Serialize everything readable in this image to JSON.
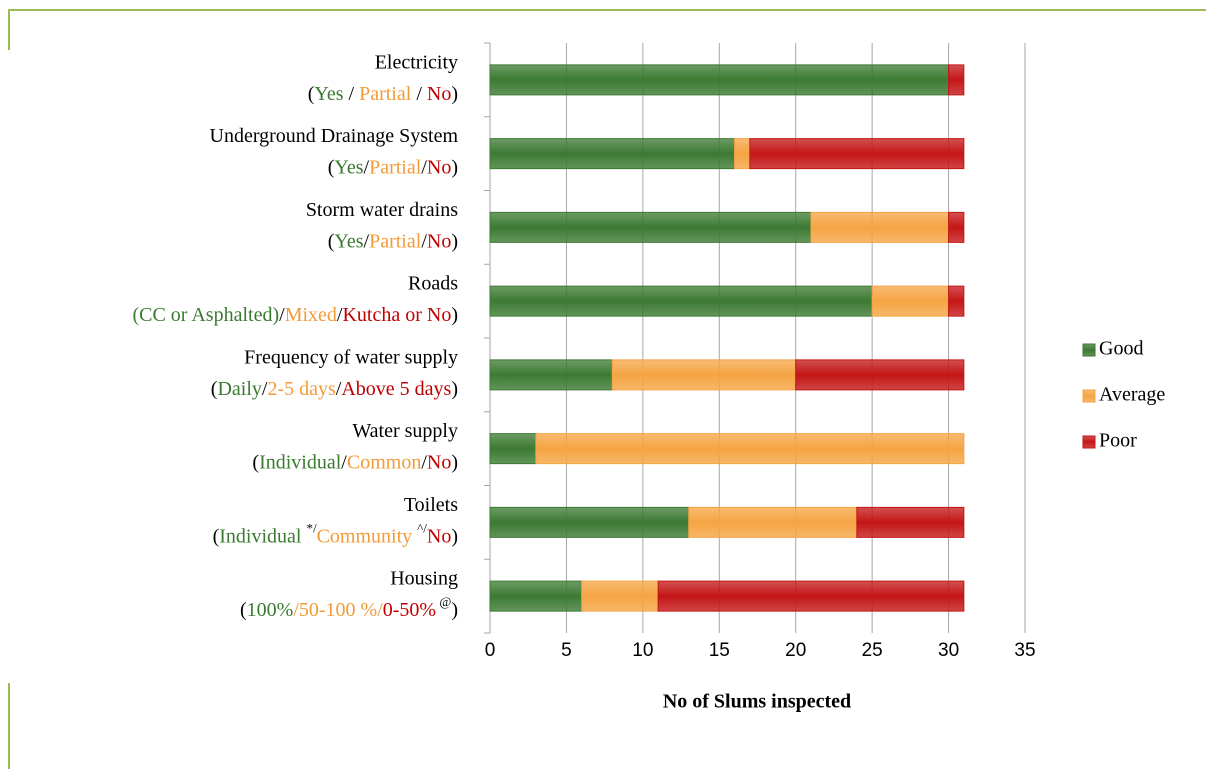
{
  "chart_data": {
    "type": "stacked-barh",
    "categories": [
      "Electricity",
      "Underground Drainage System",
      "Storm water drains",
      "Roads",
      "Frequency of water supply",
      "Water supply",
      "Toilets",
      "Housing"
    ],
    "category_details": [
      [
        {
          "text": "(",
          "color": "#000000"
        },
        {
          "text": "Yes",
          "color": "#3a7a30"
        },
        {
          "text": " / ",
          "color": "#000000"
        },
        {
          "text": "Partial",
          "color": "#f29b38"
        },
        {
          "text": " / ",
          "color": "#000000"
        },
        {
          "text": "No",
          "color": "#c00000"
        },
        {
          "text": ")",
          "color": "#000000"
        }
      ],
      [
        {
          "text": "(",
          "color": "#000000"
        },
        {
          "text": "Yes",
          "color": "#3a7a30"
        },
        {
          "text": "/",
          "color": "#000000"
        },
        {
          "text": "Partial",
          "color": "#f29b38"
        },
        {
          "text": "/",
          "color": "#000000"
        },
        {
          "text": "No",
          "color": "#c00000"
        },
        {
          "text": ")",
          "color": "#000000"
        }
      ],
      [
        {
          "text": "(",
          "color": "#000000"
        },
        {
          "text": "Yes",
          "color": "#3a7a30"
        },
        {
          "text": "/",
          "color": "#000000"
        },
        {
          "text": "Partial",
          "color": "#f29b38"
        },
        {
          "text": "/",
          "color": "#000000"
        },
        {
          "text": "No",
          "color": "#c00000"
        },
        {
          "text": ")",
          "color": "#000000"
        }
      ],
      [
        {
          "text": "(CC or Asphalted)",
          "color": "#3a7a30"
        },
        {
          "text": "/",
          "color": "#000000"
        },
        {
          "text": "Mixed",
          "color": "#f29b38"
        },
        {
          "text": "/",
          "color": "#000000"
        },
        {
          "text": "Kutcha or No",
          "color": "#c00000"
        },
        {
          "text": ")",
          "color": "#000000"
        }
      ],
      [
        {
          "text": "(",
          "color": "#000000"
        },
        {
          "text": "Daily",
          "color": "#3a7a30"
        },
        {
          "text": "/",
          "color": "#000000"
        },
        {
          "text": "2-5 days",
          "color": "#f29b38"
        },
        {
          "text": "/",
          "color": "#000000"
        },
        {
          "text": "Above 5 days",
          "color": "#c00000"
        },
        {
          "text": ")",
          "color": "#000000"
        }
      ],
      [
        {
          "text": "(",
          "color": "#000000"
        },
        {
          "text": "Individual",
          "color": "#3a7a30"
        },
        {
          "text": "/",
          "color": "#000000"
        },
        {
          "text": "Common",
          "color": "#f29b38"
        },
        {
          "text": "/",
          "color": "#000000"
        },
        {
          "text": "No",
          "color": "#c00000"
        },
        {
          "text": ")",
          "color": "#000000"
        }
      ],
      [
        {
          "text": "(",
          "color": "#000000"
        },
        {
          "text": "Individual ",
          "color": "#3a7a30"
        },
        {
          "text": "*/",
          "color": "#000000",
          "sup": true
        },
        {
          "text": "Community ",
          "color": "#f29b38"
        },
        {
          "text": "^/",
          "color": "#000000",
          "sup": true
        },
        {
          "text": "No",
          "color": "#c00000"
        },
        {
          "text": ")",
          "color": "#000000"
        }
      ],
      [
        {
          "text": "(",
          "color": "#000000"
        },
        {
          "text": "100%",
          "color": "#3a7a30"
        },
        {
          "text": "/",
          "color": "#f29b38"
        },
        {
          "text": "50-100 %",
          "color": "#f29b38"
        },
        {
          "text": "/",
          "color": "#f29b38"
        },
        {
          "text": "0-50%",
          "color": "#c00000"
        },
        {
          "text": " @",
          "color": "#000000",
          "sup": true
        },
        {
          "text": ")",
          "color": "#000000"
        }
      ]
    ],
    "series": [
      {
        "name": "Good",
        "color": "#3c7a32",
        "values": [
          30,
          16,
          21,
          25,
          8,
          3,
          13,
          6
        ]
      },
      {
        "name": "Average",
        "color": "#f5a443",
        "values": [
          0,
          1,
          9,
          5,
          12,
          28,
          11,
          5
        ]
      },
      {
        "name": "Poor",
        "color": "#c41616",
        "values": [
          1,
          14,
          1,
          1,
          11,
          0,
          7,
          20
        ]
      }
    ],
    "x_label": "No of Slums inspected",
    "xlim": [
      0,
      35
    ],
    "xticks": [
      0,
      5,
      10,
      15,
      20,
      25,
      30,
      35
    ],
    "grid": true,
    "legend": "right"
  }
}
